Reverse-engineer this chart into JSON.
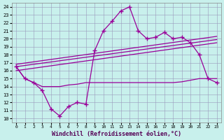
{
  "xlabel": "Windchill (Refroidissement éolien,°C)",
  "x_ticks": [
    0,
    1,
    2,
    3,
    4,
    5,
    6,
    7,
    8,
    9,
    10,
    11,
    12,
    13,
    14,
    15,
    16,
    17,
    18,
    19,
    20,
    21,
    22,
    23
  ],
  "y_ticks": [
    10,
    11,
    12,
    13,
    14,
    15,
    16,
    17,
    18,
    19,
    20,
    21,
    22,
    23,
    24
  ],
  "ylim": [
    9.5,
    24.5
  ],
  "xlim": [
    -0.5,
    23.5
  ],
  "bg_color": "#c8f0ec",
  "grid_color": "#9999bb",
  "line_color": "#990099",
  "main_line_x": [
    0,
    1,
    2,
    3,
    4,
    5,
    6,
    7,
    8,
    9,
    10,
    11,
    12,
    13,
    14,
    15,
    16,
    17,
    18,
    19,
    20,
    21,
    22,
    23
  ],
  "main_line_y": [
    16.5,
    15.0,
    14.5,
    13.5,
    11.2,
    10.3,
    11.5,
    12.0,
    11.8,
    18.5,
    21.0,
    22.2,
    23.5,
    24.0,
    21.0,
    20.0,
    20.2,
    20.8,
    20.0,
    20.2,
    19.5,
    18.0,
    15.0,
    14.5
  ],
  "flat_line_x": [
    0,
    1,
    2,
    3,
    4,
    5,
    6,
    7,
    8,
    9,
    10,
    11,
    12,
    13,
    14,
    15,
    16,
    17,
    18,
    19,
    20,
    21,
    22,
    23
  ],
  "flat_line_y": [
    16.5,
    15.0,
    14.5,
    14.0,
    14.0,
    14.0,
    14.2,
    14.3,
    14.5,
    14.5,
    14.5,
    14.5,
    14.5,
    14.5,
    14.5,
    14.5,
    14.5,
    14.5,
    14.5,
    14.6,
    14.8,
    15.0,
    15.0,
    15.0
  ],
  "trend1_x": [
    0,
    23
  ],
  "trend1_y": [
    16.0,
    19.5
  ],
  "trend2_x": [
    0,
    23
  ],
  "trend2_y": [
    16.5,
    19.9
  ],
  "trend3_x": [
    0,
    23
  ],
  "trend3_y": [
    16.8,
    20.3
  ]
}
